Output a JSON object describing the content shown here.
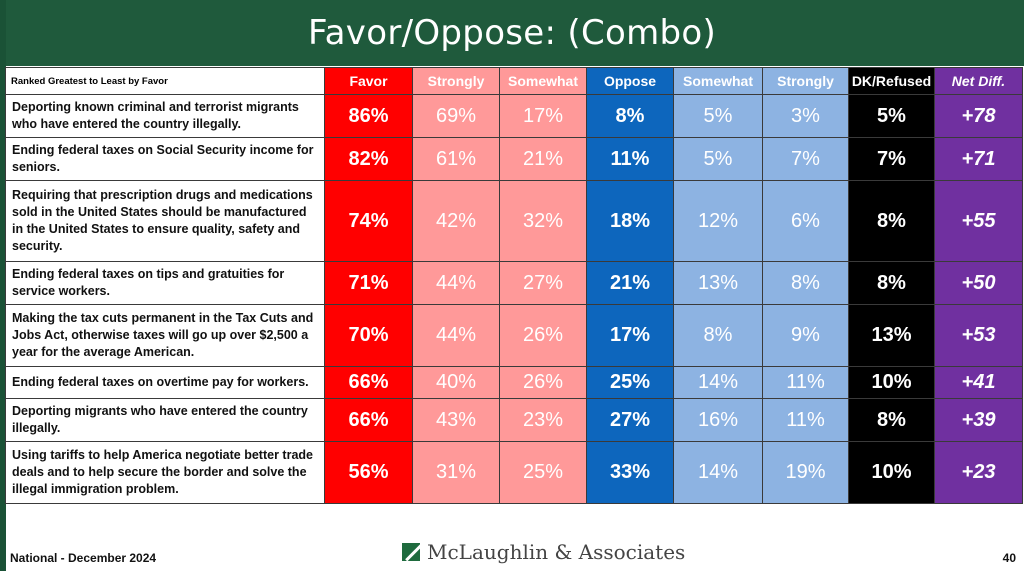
{
  "title": "Favor/Oppose: (Combo)",
  "header": {
    "rank_label": "Ranked Greatest to Least by Favor",
    "columns": [
      "Favor",
      "Strongly",
      "Somewhat",
      "Oppose",
      "Somewhat",
      "Strongly",
      "DK/Refused",
      "Net Diff."
    ]
  },
  "rows": [
    {
      "label": "Deporting known criminal and terrorist migrants who have entered the country illegally.",
      "favor": "86%",
      "favor_strongly": "69%",
      "favor_somewhat": "17%",
      "oppose": "8%",
      "oppose_somewhat": "5%",
      "oppose_strongly": "3%",
      "dk": "5%",
      "net": "+78"
    },
    {
      "label": "Ending federal taxes on Social Security income for seniors.",
      "favor": "82%",
      "favor_strongly": "61%",
      "favor_somewhat": "21%",
      "oppose": "11%",
      "oppose_somewhat": "5%",
      "oppose_strongly": "7%",
      "dk": "7%",
      "net": "+71"
    },
    {
      "label": "Requiring that prescription drugs and medications sold in the United States should be manufactured in the United States to ensure quality, safety and security.",
      "favor": "74%",
      "favor_strongly": "42%",
      "favor_somewhat": "32%",
      "oppose": "18%",
      "oppose_somewhat": "12%",
      "oppose_strongly": "6%",
      "dk": "8%",
      "net": "+55"
    },
    {
      "label": "Ending federal taxes on tips and gratuities for service workers.",
      "favor": "71%",
      "favor_strongly": "44%",
      "favor_somewhat": "27%",
      "oppose": "21%",
      "oppose_somewhat": "13%",
      "oppose_strongly": "8%",
      "dk": "8%",
      "net": "+50"
    },
    {
      "label": "Making the tax cuts permanent in the Tax Cuts and Jobs Act, otherwise taxes will go up over $2,500 a year for the average American.",
      "favor": "70%",
      "favor_strongly": "44%",
      "favor_somewhat": "26%",
      "oppose": "17%",
      "oppose_somewhat": "8%",
      "oppose_strongly": "9%",
      "dk": "13%",
      "net": "+53"
    },
    {
      "label": "Ending federal taxes on overtime pay for workers.",
      "favor": "66%",
      "favor_strongly": "40%",
      "favor_somewhat": "26%",
      "oppose": "25%",
      "oppose_somewhat": "14%",
      "oppose_strongly": "11%",
      "dk": "10%",
      "net": "+41"
    },
    {
      "label": "Deporting migrants who have entered the country illegally.",
      "favor": "66%",
      "favor_strongly": "43%",
      "favor_somewhat": "23%",
      "oppose": "27%",
      "oppose_somewhat": "16%",
      "oppose_strongly": "11%",
      "dk": "8%",
      "net": "+39"
    },
    {
      "label": "Using tariffs to help America negotiate better trade deals and to help secure the border and solve the illegal immigration problem.",
      "favor": "56%",
      "favor_strongly": "31%",
      "favor_somewhat": "25%",
      "oppose": "33%",
      "oppose_somewhat": "14%",
      "oppose_strongly": "19%",
      "dk": "10%",
      "net": "+23"
    }
  ],
  "footer": {
    "left": "National - December 2024",
    "logo_text": "McLaughlin & Associates",
    "page_number": "40"
  },
  "colors": {
    "title_bar": "#1f5a3c",
    "favor": "#ff0000",
    "favor_light": "#ff9999",
    "oppose": "#0d66bd",
    "oppose_light": "#8db3e2",
    "dk": "#000000",
    "net": "#7030a0"
  }
}
